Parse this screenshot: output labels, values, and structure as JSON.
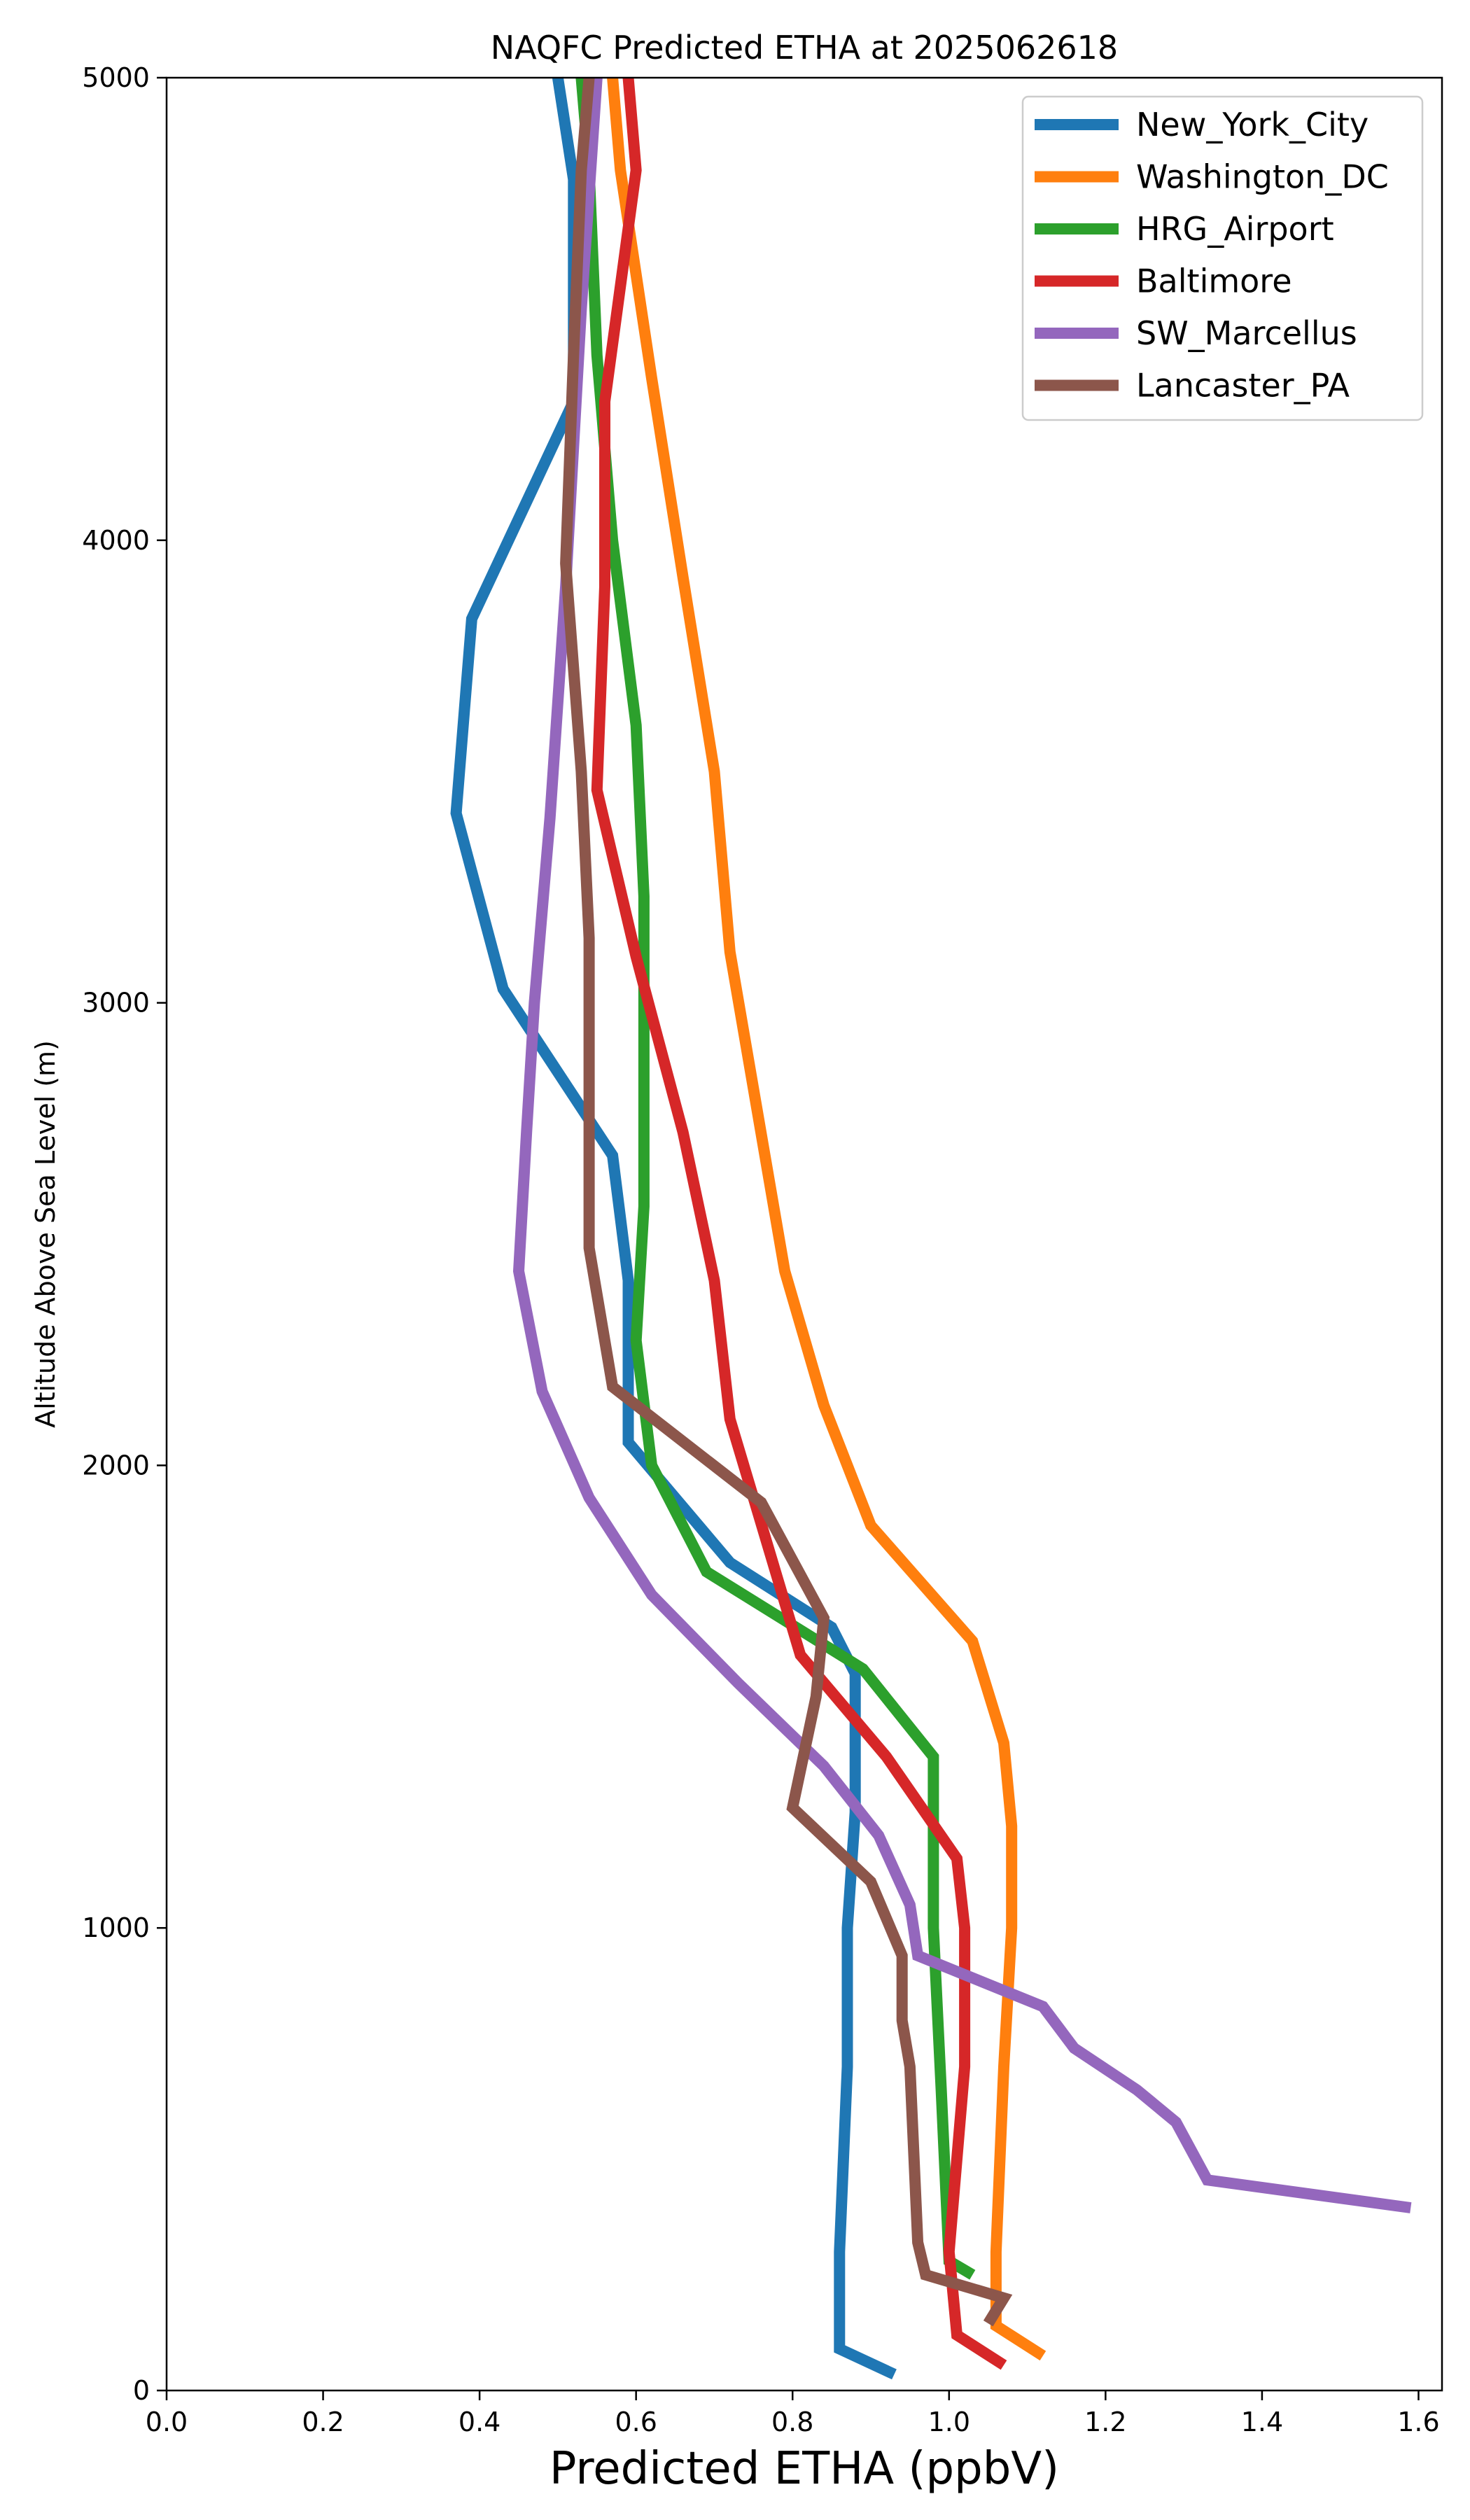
{
  "chart_data": {
    "type": "line",
    "title": "NAQFC Predicted ETHA at 2025062618",
    "xlabel": "Predicted ETHA (ppbV)",
    "ylabel": "Altitude Above Sea Level (m)",
    "xlim": [
      0.0,
      1.63
    ],
    "ylim": [
      0,
      5000
    ],
    "xticks": [
      "0.0",
      "0.2",
      "0.4",
      "0.6",
      "0.8",
      "1.0",
      "1.2",
      "1.4",
      "1.6"
    ],
    "yticks": [
      "0",
      "1000",
      "2000",
      "3000",
      "4000",
      "5000"
    ],
    "grid": false,
    "legend_position": "top-right",
    "series": [
      {
        "name": "New_York_City",
        "color": "#1f77b4",
        "x": [
          0.93,
          0.86,
          0.86,
          0.87,
          0.87,
          0.88,
          0.88,
          0.88,
          0.85,
          0.72,
          0.59,
          0.59,
          0.57,
          0.43,
          0.37,
          0.39,
          0.52,
          0.52,
          0.5
        ],
        "y": [
          35,
          90,
          300,
          700,
          1000,
          1250,
          1400,
          1550,
          1650,
          1790,
          2050,
          2400,
          2670,
          3030,
          3410,
          3830,
          4300,
          4780,
          5000
        ]
      },
      {
        "name": "Washington_DC",
        "color": "#ff7f0e",
        "x": [
          1.12,
          1.06,
          1.06,
          1.07,
          1.08,
          1.08,
          1.07,
          1.03,
          0.9,
          0.84,
          0.79,
          0.72,
          0.7,
          0.66,
          0.62,
          0.58,
          0.57
        ],
        "y": [
          75,
          140,
          300,
          700,
          1000,
          1220,
          1400,
          1620,
          1870,
          2130,
          2420,
          3110,
          3500,
          3920,
          4350,
          4800,
          5000
        ]
      },
      {
        "name": "HRG_Airport",
        "color": "#2ca02c",
        "x": [
          1.03,
          1.0,
          0.99,
          0.98,
          0.98,
          0.89,
          0.69,
          0.62,
          0.6,
          0.61,
          0.61,
          0.61,
          0.6,
          0.57,
          0.55,
          0.54,
          0.53
        ],
        "y": [
          250,
          280,
          650,
          1000,
          1370,
          1560,
          1770,
          2000,
          2270,
          2560,
          2900,
          3230,
          3600,
          4000,
          4400,
          4800,
          5000
        ]
      },
      {
        "name": "Baltimore",
        "color": "#d62728",
        "x": [
          1.07,
          1.01,
          1.0,
          1.02,
          1.02,
          1.01,
          0.92,
          0.81,
          0.72,
          0.7,
          0.66,
          0.6,
          0.55,
          0.56,
          0.56,
          0.6,
          0.59
        ],
        "y": [
          55,
          120,
          300,
          700,
          1000,
          1150,
          1370,
          1590,
          2100,
          2400,
          2720,
          3100,
          3460,
          3900,
          4300,
          4800,
          5000
        ]
      },
      {
        "name": "SW_Marcellus",
        "color": "#9467bd",
        "x": [
          1.59,
          1.33,
          1.29,
          1.24,
          1.16,
          1.12,
          0.96,
          0.95,
          0.91,
          0.84,
          0.73,
          0.62,
          0.54,
          0.48,
          0.45,
          0.46,
          0.47,
          0.49,
          0.51,
          0.53,
          0.55
        ],
        "y": [
          395,
          455,
          580,
          650,
          740,
          830,
          940,
          1050,
          1200,
          1350,
          1530,
          1720,
          1930,
          2160,
          2420,
          2720,
          3000,
          3400,
          3900,
          4500,
          5000
        ]
      },
      {
        "name": "Lancaster_PA",
        "color": "#8c564b",
        "x": [
          1.05,
          1.07,
          0.97,
          0.96,
          0.95,
          0.94,
          0.94,
          0.9,
          0.8,
          0.83,
          0.84,
          0.76,
          0.57,
          0.54,
          0.54,
          0.53,
          0.51,
          0.52,
          0.53,
          0.54
        ],
        "y": [
          145,
          200,
          250,
          320,
          700,
          800,
          940,
          1100,
          1260,
          1500,
          1670,
          1920,
          2170,
          2470,
          3140,
          3500,
          3950,
          4400,
          4800,
          5000
        ]
      }
    ]
  }
}
